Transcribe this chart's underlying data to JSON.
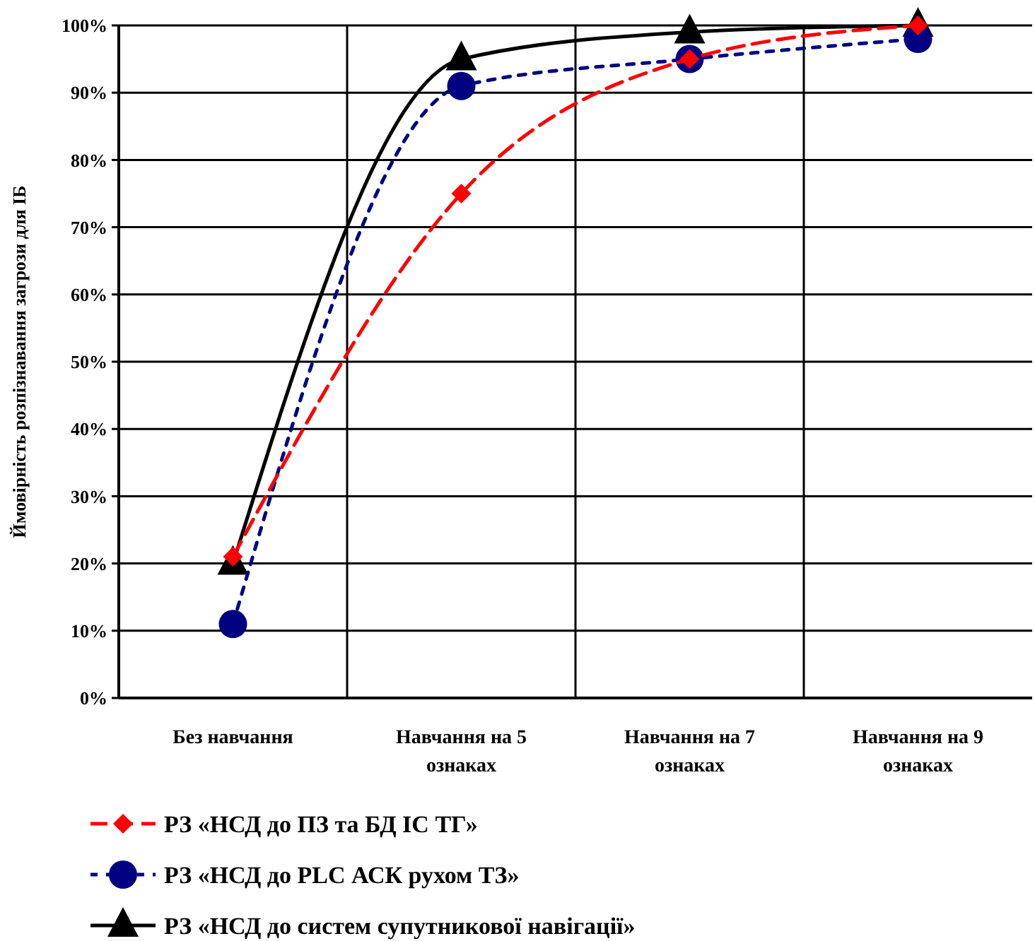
{
  "chart_data": {
    "type": "line",
    "ylabel": "Ймовірність розпізнавання загрози для ІБ",
    "categories": [
      "Без навчання",
      "Навчання на 5 ознаках",
      "Навчання на 7 ознаках",
      "Навчання на 9 ознаках"
    ],
    "series": [
      {
        "name": "РЗ  «НСД до ПЗ та БД ІС ТГ»",
        "color": "#ff0000",
        "values": [
          21,
          75,
          95,
          100
        ],
        "marker": "diamond",
        "line_style": "dashed"
      },
      {
        "name": "РЗ «НСД до PLC АСК рухом ТЗ»",
        "color": "#000080",
        "values": [
          11,
          91,
          95,
          98
        ],
        "marker": "circle",
        "line_style": "dotted"
      },
      {
        "name": "РЗ «НСД до систем супутникової навігації»",
        "color": "#000000",
        "values": [
          20,
          95,
          99,
          100
        ],
        "marker": "triangle",
        "line_style": "solid"
      }
    ],
    "ylim": [
      0,
      100
    ],
    "yticks": [
      {
        "value": 0,
        "label": "0%"
      },
      {
        "value": 10,
        "label": "10%"
      },
      {
        "value": 20,
        "label": "20%"
      },
      {
        "value": 30,
        "label": "30%"
      },
      {
        "value": 40,
        "label": "40%"
      },
      {
        "value": 50,
        "label": "50%"
      },
      {
        "value": 60,
        "label": "60%"
      },
      {
        "value": 70,
        "label": "70%"
      },
      {
        "value": 80,
        "label": "80%"
      },
      {
        "value": 90,
        "label": "90%"
      },
      {
        "value": 100,
        "label": "100%"
      }
    ],
    "grid": true,
    "legend": "bottom"
  }
}
